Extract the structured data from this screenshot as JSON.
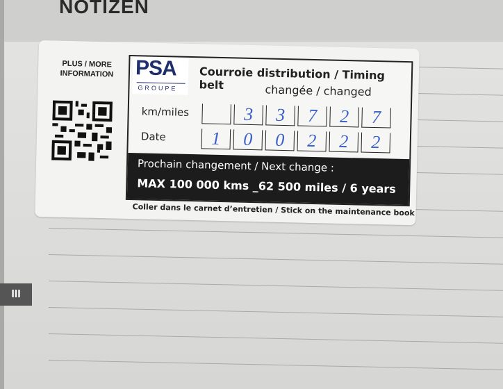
{
  "notebook": {
    "header": "NOTIZEN",
    "section_tab": "III"
  },
  "sticker": {
    "more_info": "PLUS / MORE INFORMATION",
    "logo": {
      "brand": "PSA",
      "sub": "GROUPE",
      "color": "#1f2f6b"
    },
    "title": "Courroie distribution / Timing belt",
    "subtitle": "changée / changed",
    "km_label": "km/miles",
    "km_digits": [
      "",
      "3",
      "3",
      "7",
      "2",
      "7"
    ],
    "date_label": "Date",
    "date_digits": [
      "1",
      "0",
      "0",
      "2",
      "2",
      "2"
    ],
    "next_change_label": "Prochain changement / Next change :",
    "next_change_value": "MAX 100 000 kms _62 500 miles / 6 years",
    "footer": "Coller dans le carnet d’entretien / Stick on the maintenance book",
    "handwriting_color": "#3a5fc8"
  }
}
